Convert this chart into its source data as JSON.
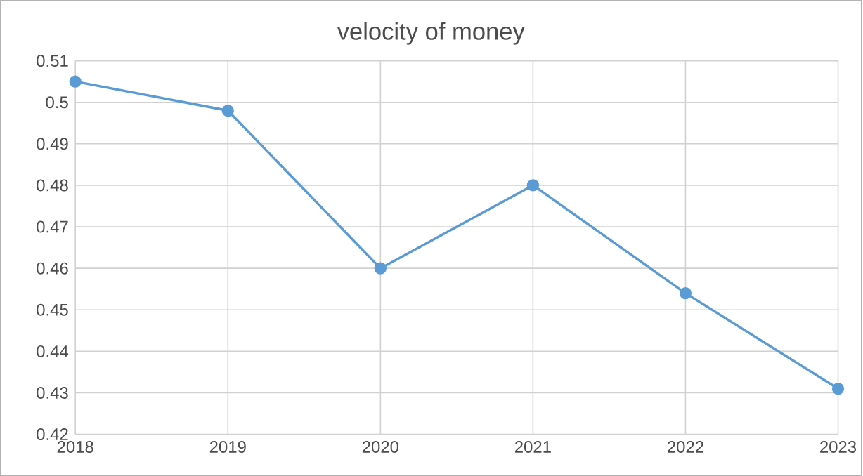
{
  "chart_data": {
    "type": "line",
    "title": "velocity of money",
    "x": [
      2018,
      2019,
      2020,
      2021,
      2022,
      2023
    ],
    "series": [
      {
        "color": "#5b9bd5",
        "values": [
          0.505,
          0.498,
          0.46,
          0.48,
          0.454,
          0.431
        ]
      }
    ],
    "xlim": [
      2018,
      2023
    ],
    "xticks": [
      2018,
      2019,
      2020,
      2021,
      2022,
      2023
    ],
    "ylim": [
      0.42,
      0.51
    ],
    "yticks": [
      0.42,
      0.43,
      0.44,
      0.45,
      0.46,
      0.47,
      0.48,
      0.49,
      0.5,
      0.51
    ],
    "grid": true,
    "marker": "circle",
    "line_style": "solid"
  }
}
